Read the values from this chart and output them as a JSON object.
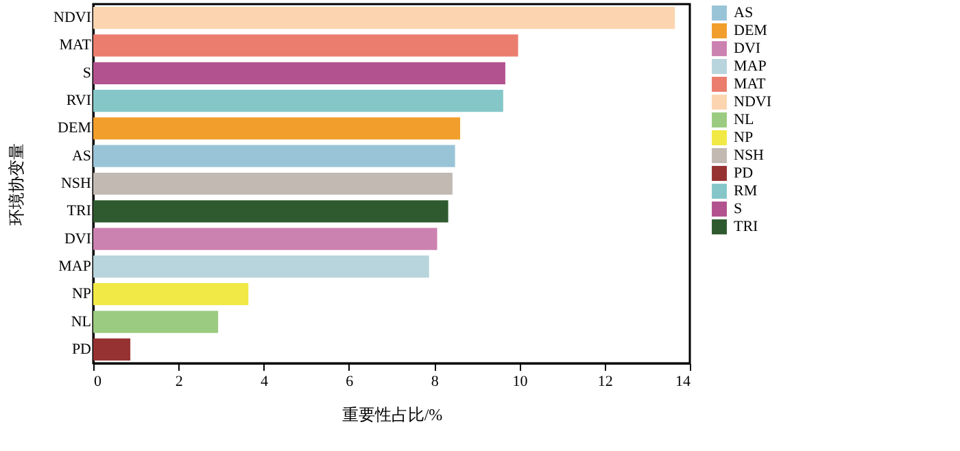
{
  "chart_data": {
    "type": "bar",
    "orientation": "horizontal",
    "xlabel": "重要性占比/%",
    "ylabel": "环境协变量",
    "categories": [
      "NDVI",
      "MAT",
      "S",
      "RVI",
      "DEM",
      "AS",
      "NSH",
      "TRI",
      "DVI",
      "MAP",
      "NP",
      "NL",
      "PD"
    ],
    "series": [
      {
        "name": "AS",
        "color": "#99c4d8",
        "values": [
          null,
          null,
          null,
          null,
          null,
          8.49,
          null,
          null,
          null,
          null,
          null,
          null,
          null
        ]
      },
      {
        "name": "DEM",
        "color": "#f19e2c",
        "values": [
          null,
          null,
          null,
          null,
          8.61,
          null,
          null,
          null,
          null,
          null,
          null,
          null,
          null
        ]
      },
      {
        "name": "DVI",
        "color": "#cc82b0",
        "values": [
          null,
          null,
          null,
          null,
          null,
          null,
          null,
          null,
          8.07,
          null,
          null,
          null,
          null
        ]
      },
      {
        "name": "MAP",
        "color": "#b8d4dc",
        "values": [
          null,
          null,
          null,
          null,
          null,
          null,
          null,
          null,
          null,
          7.88,
          null,
          null,
          null
        ]
      },
      {
        "name": "MAT",
        "color": "#eb7d6e",
        "values": [
          null,
          9.97,
          null,
          null,
          null,
          null,
          null,
          null,
          null,
          null,
          null,
          null,
          null
        ]
      },
      {
        "name": "NDVI",
        "color": "#fcd5b0",
        "values": [
          13.65,
          null,
          null,
          null,
          null,
          null,
          null,
          null,
          null,
          null,
          null,
          null,
          null
        ]
      },
      {
        "name": "NL",
        "color": "#9bcb80",
        "values": [
          null,
          null,
          null,
          null,
          null,
          null,
          null,
          null,
          null,
          null,
          null,
          2.93,
          null
        ]
      },
      {
        "name": "NP",
        "color": "#f1e945",
        "values": [
          null,
          null,
          null,
          null,
          null,
          null,
          null,
          null,
          null,
          null,
          3.64,
          null,
          null
        ]
      },
      {
        "name": "NSH",
        "color": "#c3b9b3",
        "values": [
          null,
          null,
          null,
          null,
          null,
          null,
          8.43,
          null,
          null,
          null,
          null,
          null,
          null
        ]
      },
      {
        "name": "PD",
        "color": "#963332",
        "values": [
          null,
          null,
          null,
          null,
          null,
          null,
          null,
          null,
          null,
          null,
          null,
          null,
          0.87
        ]
      },
      {
        "name": "RM",
        "color": "#85c7c8",
        "values": [
          null,
          null,
          null,
          9.62,
          null,
          null,
          null,
          null,
          null,
          null,
          null,
          null,
          null
        ]
      },
      {
        "name": "S",
        "color": "#b2528e",
        "values": [
          null,
          null,
          9.67,
          null,
          null,
          null,
          null,
          null,
          null,
          null,
          null,
          null,
          null
        ]
      },
      {
        "name": "TRI",
        "color": "#2f5a2f",
        "values": [
          null,
          null,
          null,
          null,
          null,
          null,
          null,
          8.33,
          null,
          null,
          null,
          null,
          null
        ]
      }
    ],
    "xlim": [
      0,
      14
    ],
    "xticks": [
      0,
      2,
      4,
      6,
      8,
      10,
      12,
      14
    ],
    "grid": false,
    "legend": "right"
  }
}
